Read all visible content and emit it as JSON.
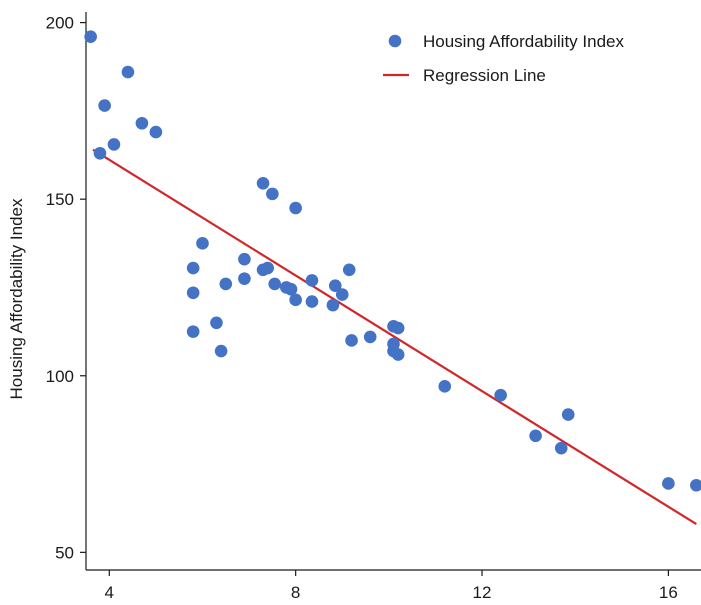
{
  "chart_data": {
    "type": "scatter",
    "title": "",
    "xlabel": "",
    "ylabel": "Housing Affordability Index",
    "xlim": [
      3.5,
      16.7
    ],
    "ylim": [
      45,
      203
    ],
    "xticks": [
      4,
      8,
      12,
      16
    ],
    "yticks": [
      50,
      100,
      150,
      200
    ],
    "grid": false,
    "legend": {
      "position": "top-right",
      "entries": [
        {
          "label": "Housing Affordability Index",
          "kind": "marker",
          "color": "#4472c4"
        },
        {
          "label": "Regression Line",
          "kind": "line",
          "color": "#d0282a"
        }
      ]
    },
    "series": [
      {
        "name": "Housing Affordability Index",
        "color": "#4472c4",
        "points": [
          [
            3.6,
            196
          ],
          [
            3.8,
            163
          ],
          [
            3.9,
            176.5
          ],
          [
            4.1,
            165.5
          ],
          [
            4.4,
            186
          ],
          [
            4.7,
            171.5
          ],
          [
            5.0,
            169
          ],
          [
            5.8,
            130.5
          ],
          [
            5.8,
            123.5
          ],
          [
            5.8,
            112.5
          ],
          [
            6.0,
            137.5
          ],
          [
            6.3,
            115
          ],
          [
            6.4,
            107
          ],
          [
            6.5,
            126
          ],
          [
            6.9,
            133
          ],
          [
            6.9,
            127.5
          ],
          [
            7.3,
            130
          ],
          [
            7.4,
            130.5
          ],
          [
            7.3,
            154.5
          ],
          [
            7.5,
            151.5
          ],
          [
            7.55,
            126
          ],
          [
            7.8,
            125
          ],
          [
            7.9,
            124.5
          ],
          [
            8.0,
            121.5
          ],
          [
            8.0,
            147.5
          ],
          [
            8.35,
            127
          ],
          [
            8.35,
            121
          ],
          [
            8.8,
            120
          ],
          [
            8.85,
            125.5
          ],
          [
            9.0,
            123
          ],
          [
            9.15,
            130
          ],
          [
            9.2,
            110
          ],
          [
            9.6,
            111
          ],
          [
            10.1,
            114
          ],
          [
            10.1,
            109
          ],
          [
            10.1,
            107
          ],
          [
            10.2,
            113.5
          ],
          [
            10.2,
            106
          ],
          [
            11.2,
            97
          ],
          [
            12.4,
            94.5
          ],
          [
            13.15,
            83
          ],
          [
            13.7,
            79.5
          ],
          [
            13.85,
            89
          ],
          [
            16.0,
            69.5
          ],
          [
            16.6,
            69
          ]
        ]
      },
      {
        "name": "Regression Line",
        "color": "#d0282a",
        "type": "line",
        "points": [
          [
            3.65,
            164
          ],
          [
            16.6,
            58
          ]
        ]
      }
    ]
  }
}
